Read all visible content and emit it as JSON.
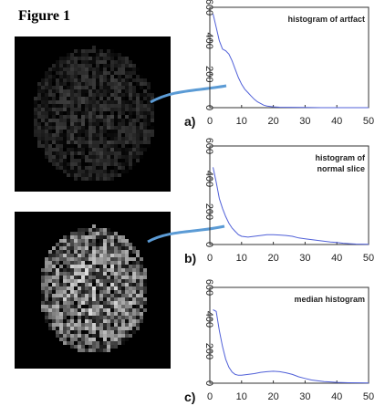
{
  "figure": {
    "title": "Figure 1"
  },
  "chart_data": [
    {
      "type": "line",
      "panel_label": "a)",
      "annotation": [
        "histogram of artfact"
      ],
      "color": "#5060d8",
      "xlim": [
        0,
        50
      ],
      "ylim": [
        0,
        600
      ],
      "xticks": [
        0,
        10,
        20,
        30,
        40,
        50
      ],
      "yticks": [
        0,
        200,
        400,
        600
      ],
      "x": [
        1,
        2,
        3,
        4,
        5,
        6,
        7,
        8,
        9,
        10,
        11,
        12,
        13,
        14,
        15,
        16,
        17,
        18,
        20,
        22,
        25,
        30,
        35,
        40,
        45,
        50
      ],
      "values": [
        560,
        480,
        400,
        350,
        340,
        320,
        280,
        230,
        180,
        140,
        110,
        90,
        70,
        50,
        35,
        25,
        15,
        10,
        5,
        3,
        2,
        1,
        0,
        0,
        0,
        0
      ]
    },
    {
      "type": "line",
      "panel_label": "b)",
      "annotation": [
        "histogram of",
        "normal slice"
      ],
      "color": "#5060d8",
      "xlim": [
        0,
        50
      ],
      "ylim": [
        0,
        600
      ],
      "xticks": [
        0,
        10,
        20,
        30,
        40,
        50
      ],
      "yticks": [
        0,
        200,
        400,
        600
      ],
      "x": [
        1,
        2,
        3,
        4,
        5,
        6,
        7,
        8,
        9,
        10,
        12,
        14,
        16,
        18,
        20,
        22,
        24,
        26,
        28,
        30,
        32,
        34,
        36,
        38,
        40,
        42,
        44,
        46,
        48,
        50
      ],
      "values": [
        470,
        380,
        280,
        220,
        170,
        130,
        100,
        80,
        60,
        50,
        45,
        50,
        55,
        60,
        60,
        58,
        55,
        50,
        40,
        35,
        30,
        25,
        20,
        15,
        12,
        8,
        5,
        3,
        2,
        1
      ]
    },
    {
      "type": "line",
      "panel_label": "c)",
      "annotation": [
        "median histogram"
      ],
      "color": "#5060d8",
      "xlim": [
        0,
        50
      ],
      "ylim": [
        0,
        600
      ],
      "xticks": [
        0,
        10,
        20,
        30,
        40,
        50
      ],
      "yticks": [
        0,
        200,
        400,
        600
      ],
      "x": [
        1,
        2,
        3,
        4,
        5,
        6,
        7,
        8,
        9,
        10,
        12,
        14,
        16,
        18,
        20,
        22,
        24,
        26,
        28,
        30,
        32,
        34,
        36,
        38,
        40,
        44,
        48,
        50
      ],
      "values": [
        460,
        450,
        330,
        230,
        150,
        100,
        70,
        55,
        50,
        50,
        55,
        60,
        68,
        72,
        75,
        72,
        65,
        55,
        40,
        30,
        20,
        15,
        10,
        8,
        5,
        3,
        2,
        1
      ]
    }
  ]
}
